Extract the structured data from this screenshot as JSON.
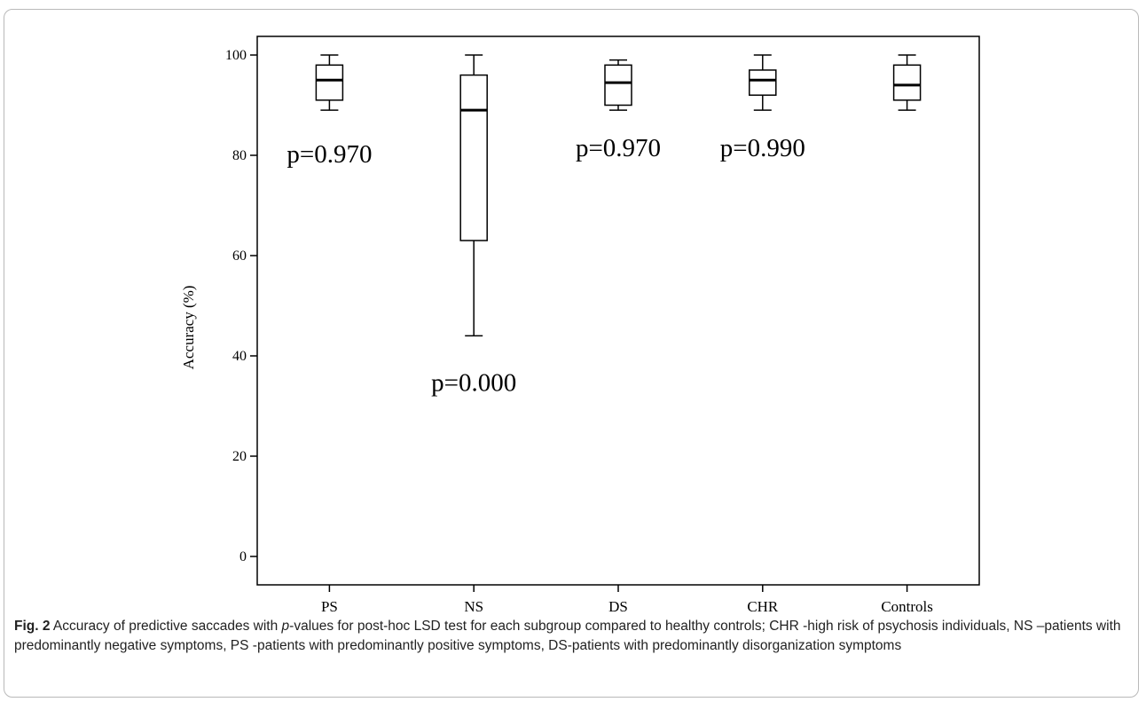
{
  "figure": {
    "caption_label": "Fig. 2",
    "caption_before_italic": " Accuracy of predictive saccades with ",
    "caption_italic": "p",
    "caption_after_italic": "-values for post-hoc LSD test for each subgroup compared to healthy controls; CHR -high risk of psychosis individuals, NS –patients with predominantly negative symptoms, PS -patients with predominantly positive symptoms, DS-patients with predominantly disorganization symptoms"
  },
  "chart_data": {
    "type": "box",
    "ylabel": "Accuracy (%)",
    "xlabel": "",
    "ylim": [
      -5,
      105
    ],
    "yticks": [
      0,
      20,
      40,
      60,
      80,
      100
    ],
    "grid": false,
    "categories": [
      "PS",
      "NS",
      "DS",
      "CHR",
      "Controls"
    ],
    "boxes": [
      {
        "group": "PS",
        "whisker_low": 89,
        "q1": 91,
        "median": 95,
        "q3": 98,
        "whisker_high": 100,
        "annotation": "p=0.970"
      },
      {
        "group": "NS",
        "whisker_low": 44,
        "q1": 63,
        "median": 89,
        "q3": 96,
        "whisker_high": 100,
        "annotation": "p=0.000"
      },
      {
        "group": "DS",
        "whisker_low": 89,
        "q1": 90,
        "median": 94.5,
        "q3": 98,
        "whisker_high": 99,
        "annotation": "p=0.970"
      },
      {
        "group": "CHR",
        "whisker_low": 89,
        "q1": 92,
        "median": 95,
        "q3": 97,
        "whisker_high": 100,
        "annotation": "p=0.990"
      },
      {
        "group": "Controls",
        "whisker_low": 89,
        "q1": 91,
        "median": 94,
        "q3": 98,
        "whisker_high": 100,
        "annotation": ""
      }
    ]
  }
}
